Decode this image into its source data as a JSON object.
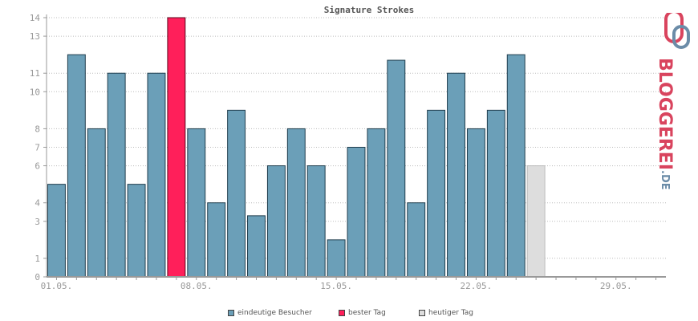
{
  "chart_data": {
    "type": "bar",
    "title": "Signature Strokes",
    "x_tick_labels": [
      "01.05.",
      "08.05.",
      "15.05.",
      "22.05.",
      "29.05."
    ],
    "y_tick_labels": [
      "0",
      "1",
      "3",
      "4",
      "6",
      "7",
      "8",
      "10",
      "11",
      "13",
      "14"
    ],
    "ylim": [
      0,
      14
    ],
    "grid": true,
    "legend_position": "bottom",
    "series": [
      {
        "name": "eindeutige Besucher",
        "color": "#6b9fb8"
      },
      {
        "name": "bester Tag",
        "color": "#ff1f5a"
      },
      {
        "name": "heutiger Tag",
        "color": "#dddddd"
      }
    ],
    "values": [
      5,
      12,
      8,
      11,
      5,
      11,
      14,
      8,
      4,
      9,
      3.3,
      6,
      8,
      6,
      2,
      7,
      8,
      11.7,
      4,
      9,
      11,
      8,
      9,
      12,
      6
    ],
    "bar_types": [
      "normal",
      "normal",
      "normal",
      "normal",
      "normal",
      "normal",
      "best",
      "normal",
      "normal",
      "normal",
      "normal",
      "normal",
      "normal",
      "normal",
      "normal",
      "normal",
      "normal",
      "normal",
      "normal",
      "normal",
      "normal",
      "normal",
      "normal",
      "normal",
      "today"
    ],
    "days_in_range": 31
  },
  "logo": {
    "text": "BLOGGEREI",
    "suffix": ".DE"
  }
}
